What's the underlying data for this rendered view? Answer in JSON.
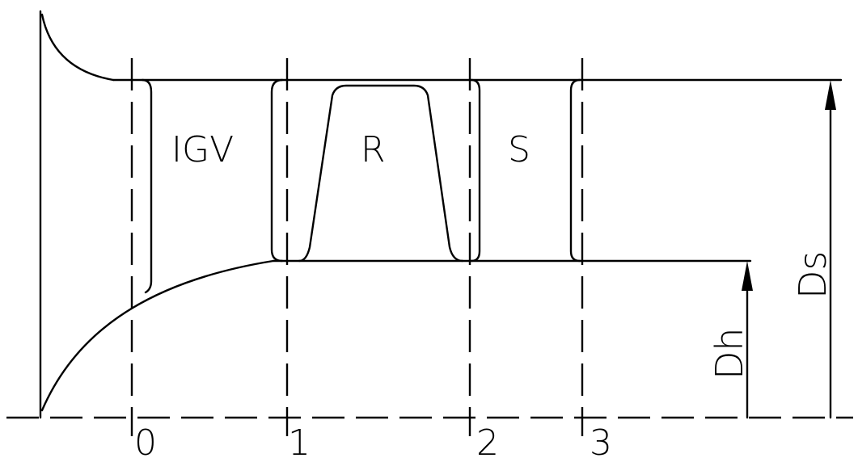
{
  "blade_rows": {
    "igv": "IGV",
    "rotor": "R",
    "stator": "S"
  },
  "stations": [
    "0",
    "1",
    "2",
    "3"
  ],
  "dimensions": {
    "hub": "Dh",
    "shroud": "Ds"
  },
  "colors": {
    "line": "#000000",
    "background": "#ffffff"
  }
}
